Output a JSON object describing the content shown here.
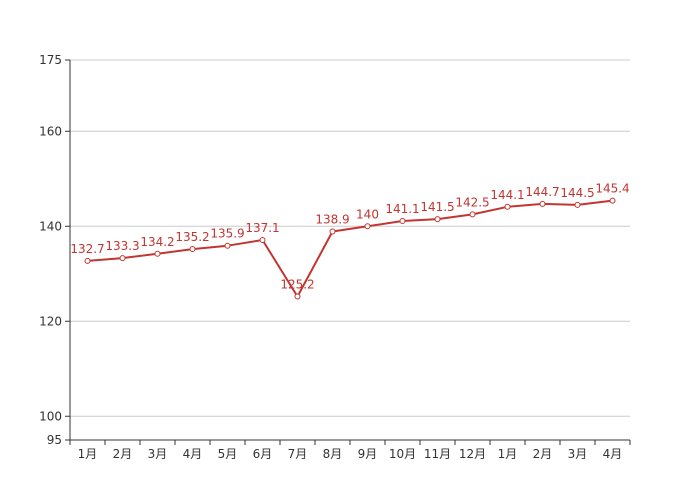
{
  "chart_data": {
    "type": "line",
    "title": "",
    "xlabel": "",
    "ylabel": "",
    "categories": [
      "1月",
      "2月",
      "3月",
      "4月",
      "5月",
      "6月",
      "7月",
      "8月",
      "9月",
      "10月",
      "11月",
      "12月",
      "1月",
      "2月",
      "3月",
      "4月"
    ],
    "series": [
      {
        "values": [
          132.7,
          133.3,
          134.2,
          135.2,
          135.9,
          137.1,
          125.2,
          138.9,
          140,
          141.1,
          141.5,
          142.5,
          144.1,
          144.7,
          144.5,
          145.4
        ],
        "labels": [
          "132.7",
          "133.3",
          "134.2",
          "135.2",
          "135.9",
          "137.1",
          "125.2",
          "138.9",
          "140",
          "141.1",
          "141.5",
          "142.5",
          "144.1",
          "144.7",
          "144.5",
          "145.4"
        ],
        "color": "#c23531"
      }
    ],
    "ylim": [
      95,
      175
    ],
    "yticks": [
      {
        "value": 175,
        "label": "175"
      },
      {
        "value": 160,
        "label": "160"
      },
      {
        "value": 140,
        "label": "140"
      },
      {
        "value": 120,
        "label": "120"
      },
      {
        "value": 100,
        "label": "100"
      },
      {
        "value": 95,
        "label": "95"
      }
    ],
    "grid": true,
    "legend": "none"
  }
}
